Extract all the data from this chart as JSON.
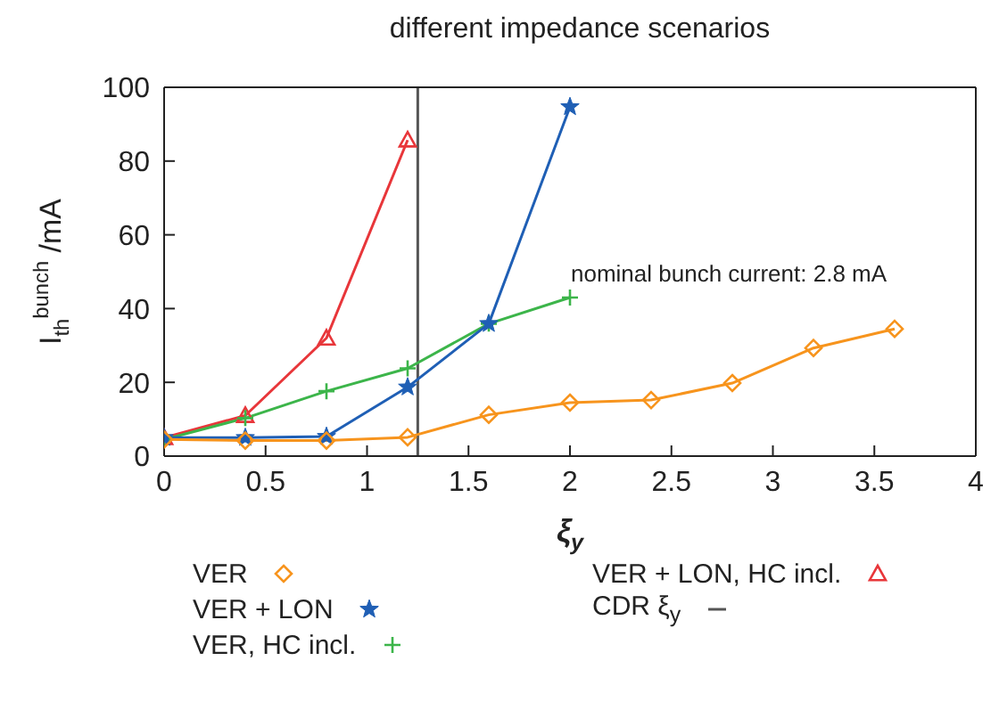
{
  "chart_data": {
    "type": "line",
    "title": "different impedance scenarios",
    "xlabel": "ξ$_{y}$",
    "ylabel": "I$_{th}$$^{bunch}$ /mA",
    "xlim": [
      0,
      4
    ],
    "xticks": [
      0,
      0.5,
      1,
      1.5,
      2,
      2.5,
      3,
      3.5,
      4
    ],
    "ylim": [
      0,
      100
    ],
    "yticks": [
      0,
      20,
      40,
      60,
      80,
      100
    ],
    "grid": false,
    "legend": "bottom",
    "series": [
      {
        "name": "VER",
        "color": "#f7941d",
        "marker": "diamond",
        "x": [
          0,
          0.4,
          0.8,
          1.2,
          1.6,
          2.0,
          2.4,
          2.8,
          3.2,
          3.6
        ],
        "values": [
          4.5,
          4.2,
          4.2,
          5.1,
          11.2,
          14.5,
          15.2,
          19.8,
          29.3,
          34.5
        ]
      },
      {
        "name": "VER + LON",
        "color": "#1f5fb5",
        "marker": "star",
        "x": [
          0,
          0.4,
          0.8,
          1.2,
          1.6,
          2.0
        ],
        "values": [
          5,
          5,
          5.3,
          18.7,
          35.9,
          94.7
        ]
      },
      {
        "name": "VER, HC incl.",
        "color": "#3cb54a",
        "marker": "cross",
        "x": [
          0,
          0.4,
          0.8,
          1.2,
          1.6,
          2.0
        ],
        "values": [
          4.5,
          10.3,
          17.6,
          23.8,
          35.9,
          43
        ]
      },
      {
        "name": "VER + LON, HC incl.",
        "color": "#e8363a",
        "marker": "triangle",
        "x": [
          0,
          0.4,
          0.8,
          1.2
        ],
        "values": [
          5,
          11,
          32,
          85.7
        ]
      }
    ],
    "ref_lines": [
      {
        "axis": "x",
        "value": 1.25,
        "label": "CDR ξ$_{y}$",
        "color": "#555555"
      }
    ],
    "annotations": [
      "nominal bunch current: 2.8 mA"
    ]
  }
}
